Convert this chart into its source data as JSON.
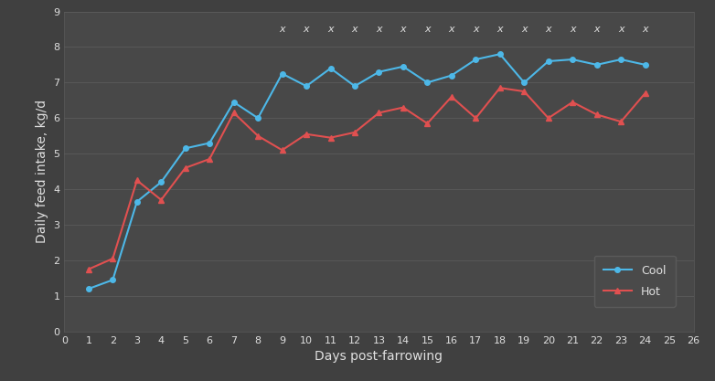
{
  "cool_x": [
    1,
    2,
    3,
    4,
    5,
    6,
    7,
    8,
    9,
    10,
    11,
    12,
    13,
    14,
    15,
    16,
    17,
    18,
    19,
    20,
    21,
    22,
    23,
    24
  ],
  "cool_y": [
    1.2,
    1.45,
    3.65,
    4.2,
    5.15,
    5.3,
    6.45,
    6.0,
    7.25,
    6.9,
    7.4,
    6.9,
    7.3,
    7.45,
    7.0,
    7.2,
    7.65,
    7.8,
    7.0,
    7.6,
    7.65,
    7.5,
    7.65,
    7.5
  ],
  "hot_x": [
    1,
    2,
    3,
    4,
    5,
    6,
    7,
    8,
    9,
    10,
    11,
    12,
    13,
    14,
    15,
    16,
    17,
    18,
    19,
    20,
    21,
    22,
    23,
    24
  ],
  "hot_y": [
    1.75,
    2.05,
    4.25,
    3.7,
    4.6,
    4.85,
    6.15,
    5.5,
    5.1,
    5.55,
    5.45,
    5.6,
    6.15,
    6.3,
    5.85,
    6.6,
    6.0,
    6.85,
    6.75,
    6.0,
    6.45,
    6.1,
    5.9,
    6.7
  ],
  "significance_x": [
    9,
    10,
    11,
    12,
    13,
    14,
    15,
    16,
    17,
    18,
    19,
    20,
    21,
    22,
    23,
    24
  ],
  "significance_y": 8.5,
  "cool_color": "#4db8e8",
  "hot_color": "#e05050",
  "bg_color": "#404040",
  "axes_bg_color": "#484848",
  "grid_color": "#5a5a5a",
  "text_color": "#e0e0e0",
  "xlabel": "Days post-farrowing",
  "ylabel": "Daily feed intake, kg/d",
  "xlim": [
    0,
    26
  ],
  "ylim": [
    0,
    9
  ],
  "xticks": [
    0,
    1,
    2,
    3,
    4,
    5,
    6,
    7,
    8,
    9,
    10,
    11,
    12,
    13,
    14,
    15,
    16,
    17,
    18,
    19,
    20,
    21,
    22,
    23,
    24,
    25,
    26
  ],
  "yticks": [
    0,
    1,
    2,
    3,
    4,
    5,
    6,
    7,
    8,
    9
  ],
  "legend_labels": [
    "Cool",
    "Hot"
  ],
  "marker_cool": "o",
  "marker_hot": "^",
  "linewidth": 1.5,
  "markersize": 4
}
